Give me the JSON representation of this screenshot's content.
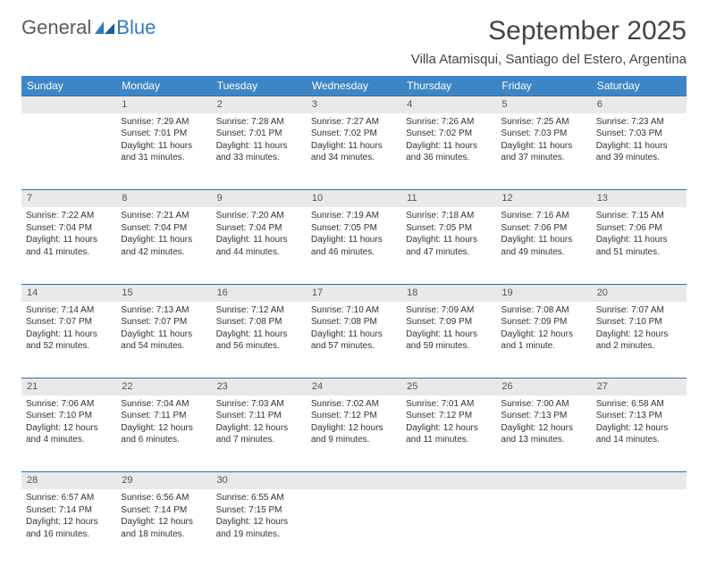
{
  "brand": {
    "part1": "General",
    "part2": "Blue"
  },
  "title": "September 2025",
  "location": "Villa Atamisqui, Santiago del Estero, Argentina",
  "colors": {
    "header_bg": "#3d86c6",
    "header_text": "#ffffff",
    "daynum_bg": "#e9e9e9",
    "daynum_border": "#2f6ea8",
    "text": "#333333",
    "brand_gray": "#5a5a5a",
    "brand_blue": "#2f7bbf"
  },
  "weekdays": [
    "Sunday",
    "Monday",
    "Tuesday",
    "Wednesday",
    "Thursday",
    "Friday",
    "Saturday"
  ],
  "weeks": [
    {
      "nums": [
        "",
        "1",
        "2",
        "3",
        "4",
        "5",
        "6"
      ],
      "cells": [
        null,
        {
          "sr": "Sunrise: 7:29 AM",
          "ss": "Sunset: 7:01 PM",
          "d1": "Daylight: 11 hours",
          "d2": "and 31 minutes."
        },
        {
          "sr": "Sunrise: 7:28 AM",
          "ss": "Sunset: 7:01 PM",
          "d1": "Daylight: 11 hours",
          "d2": "and 33 minutes."
        },
        {
          "sr": "Sunrise: 7:27 AM",
          "ss": "Sunset: 7:02 PM",
          "d1": "Daylight: 11 hours",
          "d2": "and 34 minutes."
        },
        {
          "sr": "Sunrise: 7:26 AM",
          "ss": "Sunset: 7:02 PM",
          "d1": "Daylight: 11 hours",
          "d2": "and 36 minutes."
        },
        {
          "sr": "Sunrise: 7:25 AM",
          "ss": "Sunset: 7:03 PM",
          "d1": "Daylight: 11 hours",
          "d2": "and 37 minutes."
        },
        {
          "sr": "Sunrise: 7:23 AM",
          "ss": "Sunset: 7:03 PM",
          "d1": "Daylight: 11 hours",
          "d2": "and 39 minutes."
        }
      ]
    },
    {
      "nums": [
        "7",
        "8",
        "9",
        "10",
        "11",
        "12",
        "13"
      ],
      "cells": [
        {
          "sr": "Sunrise: 7:22 AM",
          "ss": "Sunset: 7:04 PM",
          "d1": "Daylight: 11 hours",
          "d2": "and 41 minutes."
        },
        {
          "sr": "Sunrise: 7:21 AM",
          "ss": "Sunset: 7:04 PM",
          "d1": "Daylight: 11 hours",
          "d2": "and 42 minutes."
        },
        {
          "sr": "Sunrise: 7:20 AM",
          "ss": "Sunset: 7:04 PM",
          "d1": "Daylight: 11 hours",
          "d2": "and 44 minutes."
        },
        {
          "sr": "Sunrise: 7:19 AM",
          "ss": "Sunset: 7:05 PM",
          "d1": "Daylight: 11 hours",
          "d2": "and 46 minutes."
        },
        {
          "sr": "Sunrise: 7:18 AM",
          "ss": "Sunset: 7:05 PM",
          "d1": "Daylight: 11 hours",
          "d2": "and 47 minutes."
        },
        {
          "sr": "Sunrise: 7:16 AM",
          "ss": "Sunset: 7:06 PM",
          "d1": "Daylight: 11 hours",
          "d2": "and 49 minutes."
        },
        {
          "sr": "Sunrise: 7:15 AM",
          "ss": "Sunset: 7:06 PM",
          "d1": "Daylight: 11 hours",
          "d2": "and 51 minutes."
        }
      ]
    },
    {
      "nums": [
        "14",
        "15",
        "16",
        "17",
        "18",
        "19",
        "20"
      ],
      "cells": [
        {
          "sr": "Sunrise: 7:14 AM",
          "ss": "Sunset: 7:07 PM",
          "d1": "Daylight: 11 hours",
          "d2": "and 52 minutes."
        },
        {
          "sr": "Sunrise: 7:13 AM",
          "ss": "Sunset: 7:07 PM",
          "d1": "Daylight: 11 hours",
          "d2": "and 54 minutes."
        },
        {
          "sr": "Sunrise: 7:12 AM",
          "ss": "Sunset: 7:08 PM",
          "d1": "Daylight: 11 hours",
          "d2": "and 56 minutes."
        },
        {
          "sr": "Sunrise: 7:10 AM",
          "ss": "Sunset: 7:08 PM",
          "d1": "Daylight: 11 hours",
          "d2": "and 57 minutes."
        },
        {
          "sr": "Sunrise: 7:09 AM",
          "ss": "Sunset: 7:09 PM",
          "d1": "Daylight: 11 hours",
          "d2": "and 59 minutes."
        },
        {
          "sr": "Sunrise: 7:08 AM",
          "ss": "Sunset: 7:09 PM",
          "d1": "Daylight: 12 hours",
          "d2": "and 1 minute."
        },
        {
          "sr": "Sunrise: 7:07 AM",
          "ss": "Sunset: 7:10 PM",
          "d1": "Daylight: 12 hours",
          "d2": "and 2 minutes."
        }
      ]
    },
    {
      "nums": [
        "21",
        "22",
        "23",
        "24",
        "25",
        "26",
        "27"
      ],
      "cells": [
        {
          "sr": "Sunrise: 7:06 AM",
          "ss": "Sunset: 7:10 PM",
          "d1": "Daylight: 12 hours",
          "d2": "and 4 minutes."
        },
        {
          "sr": "Sunrise: 7:04 AM",
          "ss": "Sunset: 7:11 PM",
          "d1": "Daylight: 12 hours",
          "d2": "and 6 minutes."
        },
        {
          "sr": "Sunrise: 7:03 AM",
          "ss": "Sunset: 7:11 PM",
          "d1": "Daylight: 12 hours",
          "d2": "and 7 minutes."
        },
        {
          "sr": "Sunrise: 7:02 AM",
          "ss": "Sunset: 7:12 PM",
          "d1": "Daylight: 12 hours",
          "d2": "and 9 minutes."
        },
        {
          "sr": "Sunrise: 7:01 AM",
          "ss": "Sunset: 7:12 PM",
          "d1": "Daylight: 12 hours",
          "d2": "and 11 minutes."
        },
        {
          "sr": "Sunrise: 7:00 AM",
          "ss": "Sunset: 7:13 PM",
          "d1": "Daylight: 12 hours",
          "d2": "and 13 minutes."
        },
        {
          "sr": "Sunrise: 6:58 AM",
          "ss": "Sunset: 7:13 PM",
          "d1": "Daylight: 12 hours",
          "d2": "and 14 minutes."
        }
      ]
    },
    {
      "nums": [
        "28",
        "29",
        "30",
        "",
        "",
        "",
        ""
      ],
      "cells": [
        {
          "sr": "Sunrise: 6:57 AM",
          "ss": "Sunset: 7:14 PM",
          "d1": "Daylight: 12 hours",
          "d2": "and 16 minutes."
        },
        {
          "sr": "Sunrise: 6:56 AM",
          "ss": "Sunset: 7:14 PM",
          "d1": "Daylight: 12 hours",
          "d2": "and 18 minutes."
        },
        {
          "sr": "Sunrise: 6:55 AM",
          "ss": "Sunset: 7:15 PM",
          "d1": "Daylight: 12 hours",
          "d2": "and 19 minutes."
        },
        null,
        null,
        null,
        null
      ]
    }
  ]
}
